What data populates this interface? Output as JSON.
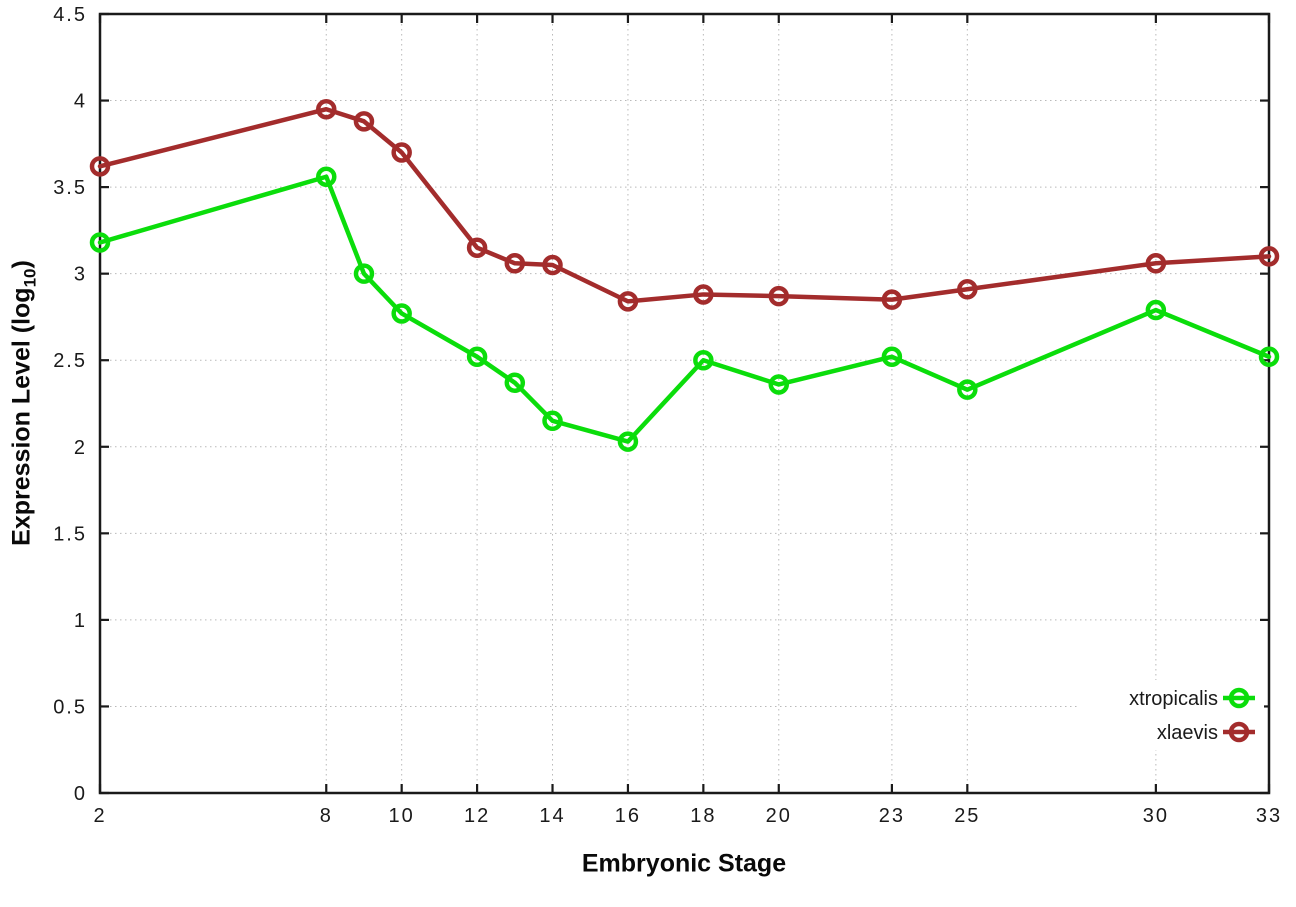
{
  "chart_data": {
    "type": "line",
    "title": "",
    "xlabel": "Embryonic Stage",
    "ylabel": {
      "main": "Expression Level (log",
      "sub": "10",
      "suffix": ")"
    },
    "xlim": [
      2,
      33
    ],
    "ylim": [
      0,
      4.5
    ],
    "grid": true,
    "grid_style": "dotted",
    "legend_position": "inside-right-middle",
    "x": [
      2,
      8,
      9,
      10,
      12,
      13,
      14,
      16,
      18,
      20,
      23,
      25,
      30,
      33
    ],
    "xticks": [
      2,
      8,
      10,
      12,
      14,
      16,
      18,
      20,
      23,
      25,
      30,
      33
    ],
    "yticks": [
      0,
      0.5,
      1,
      1.5,
      2,
      2.5,
      3,
      3.5,
      4,
      4.5
    ],
    "series": [
      {
        "name": "xtropicalis",
        "color": "#0bdd0b",
        "marker": "open-circle",
        "values": [
          3.18,
          3.56,
          3.0,
          2.77,
          2.52,
          2.37,
          2.15,
          2.03,
          2.5,
          2.36,
          2.52,
          2.33,
          2.79,
          2.52
        ]
      },
      {
        "name": "xlaevis",
        "color": "#a32c2c",
        "marker": "open-circle",
        "values": [
          3.62,
          3.95,
          3.88,
          3.7,
          3.15,
          3.06,
          3.05,
          2.84,
          2.88,
          2.87,
          2.85,
          2.91,
          3.06,
          3.1
        ]
      }
    ],
    "colors": {
      "axis": "#1a1a1a",
      "grid": "#b9b9b9",
      "tick_label": "#1a1a1a",
      "background": "#ffffff"
    }
  }
}
